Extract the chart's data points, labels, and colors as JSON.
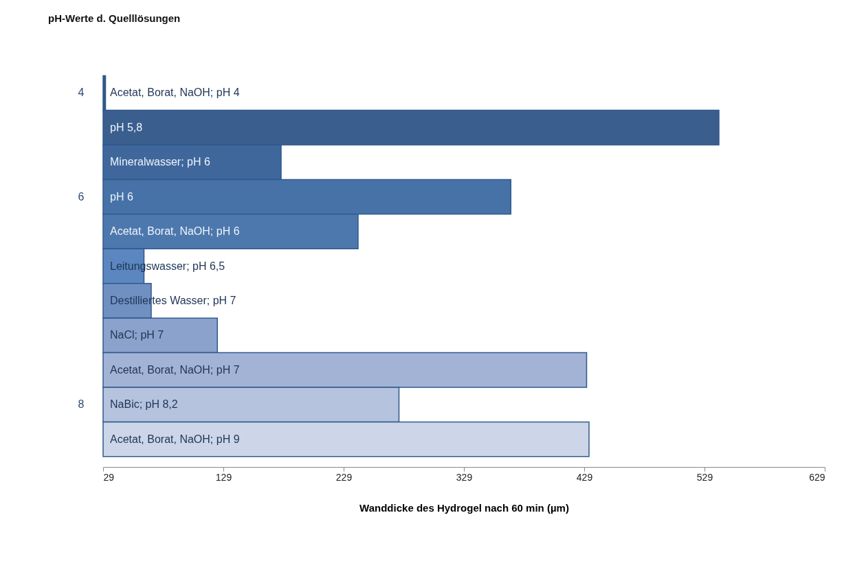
{
  "chart_data": {
    "type": "bar",
    "orientation": "horizontal",
    "ylabel": "pH-Werte d. Quelllösungen",
    "xlabel": "Wanddicke des Hydrogel nach 60 min (µm)",
    "categories": [
      "Acetat, Borat, NaOH; pH 4",
      "pH 5,8",
      "Mineralwasser; pH 6",
      "pH 6",
      "Acetat, Borat, NaOH; pH 6",
      "Leitungswasser; pH 6,5",
      "Destilliertes Wasser; pH 7",
      "NaCl; pH 7",
      "Acetat, Borat, NaOH; pH 7",
      "NaBic; pH 8,2",
      "Acetat, Borat, NaOH; pH 9"
    ],
    "values": [
      31,
      541,
      177,
      368,
      241,
      63,
      69,
      124,
      431,
      275,
      433
    ],
    "colors": [
      "#2f5a8a",
      "#3a5f8e",
      "#3f679c",
      "#4672a8",
      "#4d78ad",
      "#5b86bf",
      "#7090c2",
      "#8aa2cc",
      "#a3b3d6",
      "#b5c3df",
      "#ccd6e8"
    ],
    "xlim": [
      29,
      629
    ],
    "xticks": [
      29,
      129,
      229,
      329,
      429,
      529,
      629
    ],
    "grid": false,
    "annotations": [
      "4",
      "6",
      "8"
    ]
  }
}
